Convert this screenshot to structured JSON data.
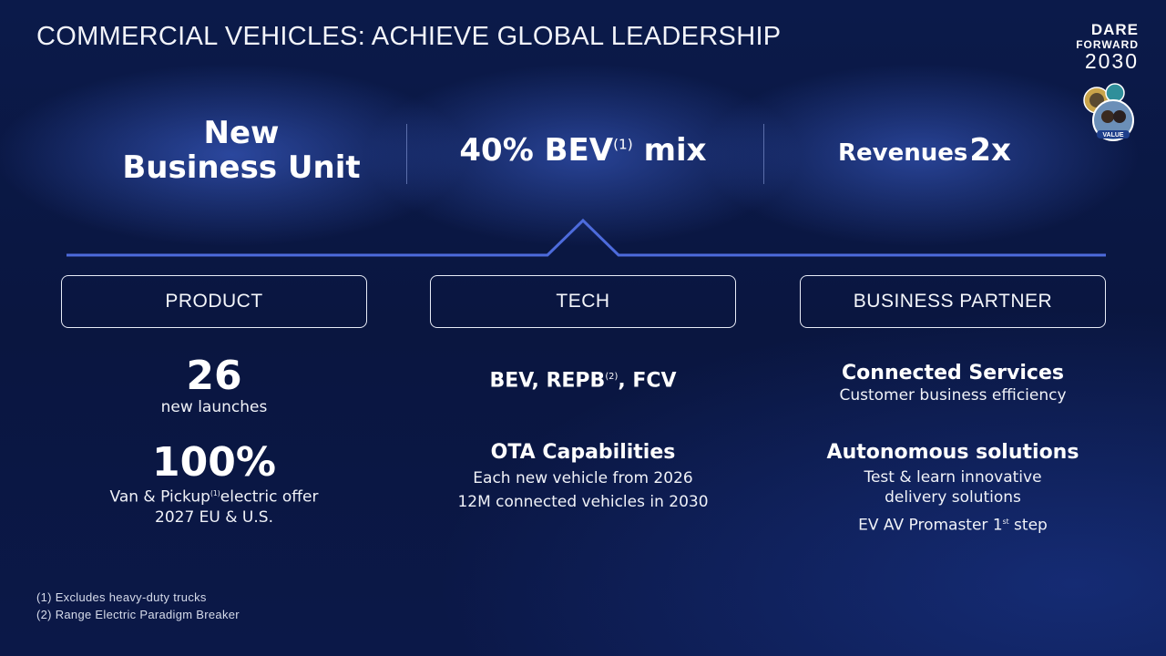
{
  "slide": {
    "title": "COMMERCIAL VEHICLES: ACHIEVE GLOBAL LEADERSHIP",
    "logo": {
      "line1": "DARE",
      "line2": "FORWARD",
      "line3": "2030",
      "badge_text": "VALUE"
    },
    "headlines": {
      "business_unit_line1": "New",
      "business_unit_line2": "Business Unit",
      "bev_mix_prefix": "40% BEV",
      "bev_mix_sup": "(1)",
      "bev_mix_suffix": "mix",
      "revenues_label": "Revenues",
      "revenues_value": "2x"
    },
    "pillars": {
      "product": {
        "label": "PRODUCT",
        "launches_number": "26",
        "launches_label": "new launches",
        "electric_percent": "100%",
        "electric_text_a": "Van & Pickup",
        "electric_sup": "(1)",
        "electric_text_b": "electric offer",
        "electric_text_line2": "2027 EU & U.S."
      },
      "tech": {
        "label": "TECH",
        "powertrains_a": "BEV, REPB",
        "powertrains_sup": "(2)",
        "powertrains_b": ", FCV",
        "ota_title": "OTA Capabilities",
        "ota_line1": "Each new vehicle from 2026",
        "ota_line2": "12M connected vehicles in 2030"
      },
      "business_partner": {
        "label": "BUSINESS PARTNER",
        "connected_title": "Connected Services",
        "connected_sub": "Customer business efficiency",
        "autonomous_title": "Autonomous solutions",
        "autonomous_line1": "Test & learn innovative",
        "autonomous_line2": "delivery solutions",
        "autonomous_line3_a": "EV AV Promaster 1",
        "autonomous_line3_sup": "st",
        "autonomous_line3_b": " step"
      }
    },
    "footnotes": {
      "note1": "(1) Excludes heavy-duty trucks",
      "note2": "(2) Range Electric Paradigm Breaker"
    },
    "colors": {
      "background": "#0a1640",
      "accent_line": "#4d6bdc",
      "text": "#ffffff"
    }
  }
}
